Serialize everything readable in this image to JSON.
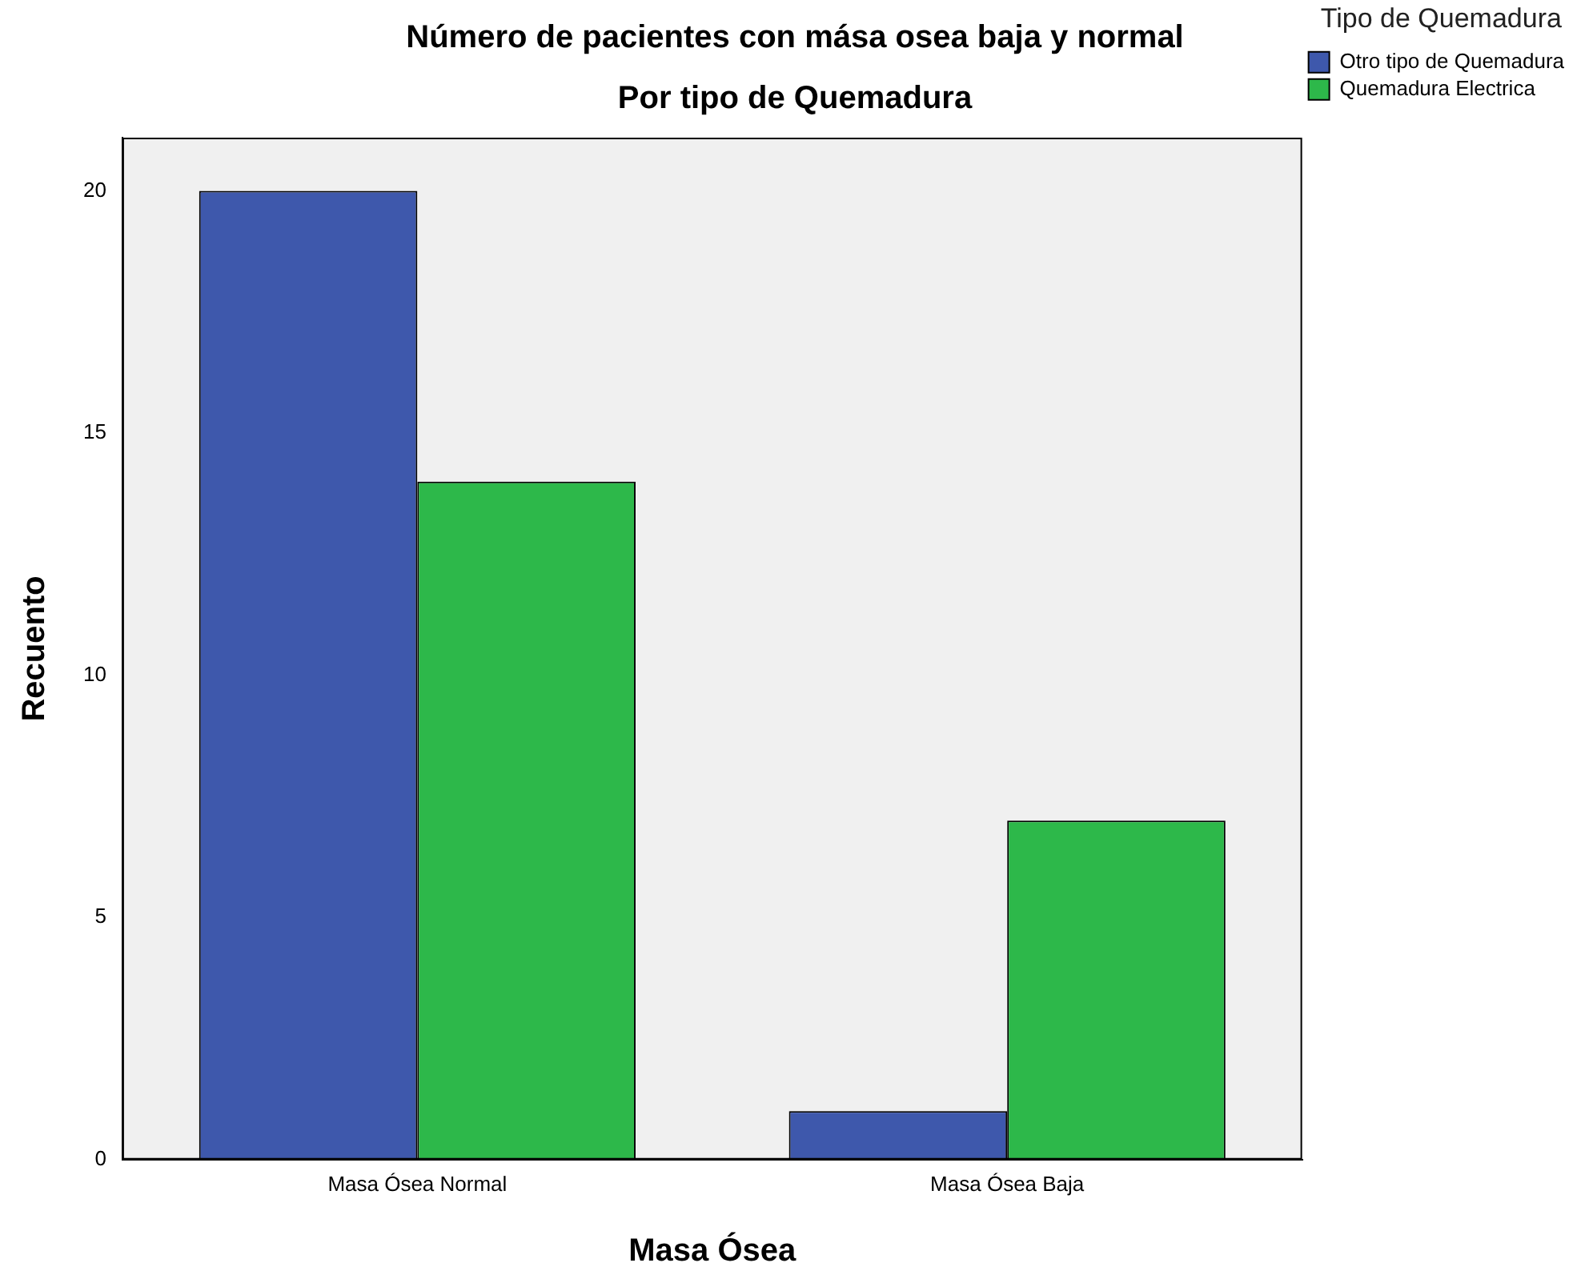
{
  "chart_data": {
    "type": "bar",
    "title": "Número de pacientes con mása osea baja y normal",
    "subtitle": "Por tipo de Quemadura",
    "xlabel": "Masa Ósea",
    "ylabel": "Recuento",
    "legend_title": "Tipo de Quemadura",
    "categories": [
      "Masa Ósea Normal",
      "Masa Ósea Baja"
    ],
    "series": [
      {
        "name": "Otro tipo de Quemadura",
        "color": "#3e58ac",
        "values": [
          20,
          1
        ]
      },
      {
        "name": "Quemadura Electrica",
        "color": "#2db84a",
        "values": [
          14,
          7
        ]
      }
    ],
    "ylim": [
      0,
      21.1
    ],
    "yticks": [
      0,
      5,
      10,
      15,
      20
    ],
    "grid": false,
    "legend": "top right"
  }
}
